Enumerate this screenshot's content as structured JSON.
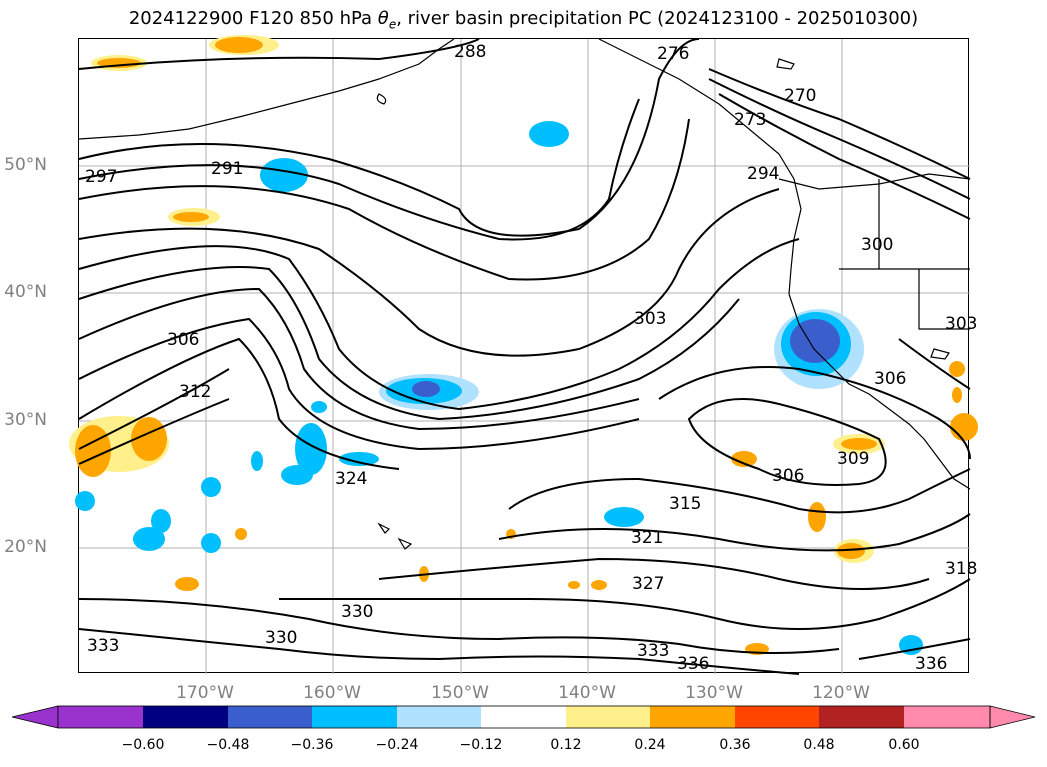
{
  "figure": {
    "title_prefix": "2024122900 F120 850 hPa ",
    "title_symbol": "θ",
    "title_subscript": "e",
    "title_suffix": ", river basin precipitation PC (2024123100 - 2025010300)"
  },
  "map": {
    "lat_labels": [
      "50°N",
      "40°N",
      "30°N",
      "20°N"
    ],
    "lon_labels": [
      "170°W",
      "160°W",
      "150°W",
      "140°W",
      "130°W",
      "120°W"
    ],
    "contour_labels": [
      "288",
      "276",
      "270",
      "273",
      "294",
      "291",
      "297",
      "300",
      "303",
      "306",
      "312",
      "303",
      "306",
      "309",
      "306",
      "315",
      "321",
      "324",
      "327",
      "330",
      "330",
      "333",
      "333",
      "336",
      "336",
      "318"
    ],
    "contour_color": "#000000",
    "coastline_color": "#000000",
    "grid_color": "#b0b0b0"
  },
  "colorbar": {
    "tick_labels": [
      "−0.60",
      "−0.48",
      "−0.36",
      "−0.24",
      "−0.12",
      "0.12",
      "0.24",
      "0.36",
      "0.48",
      "0.60"
    ],
    "colors": [
      "#9a32cd",
      "#000080",
      "#3a5fcd",
      "#00bfff",
      "#b0e2ff",
      "#ffffff",
      "#fff08c",
      "#ffa500",
      "#ff4500",
      "#b22222",
      "#ff8aab"
    ]
  }
}
